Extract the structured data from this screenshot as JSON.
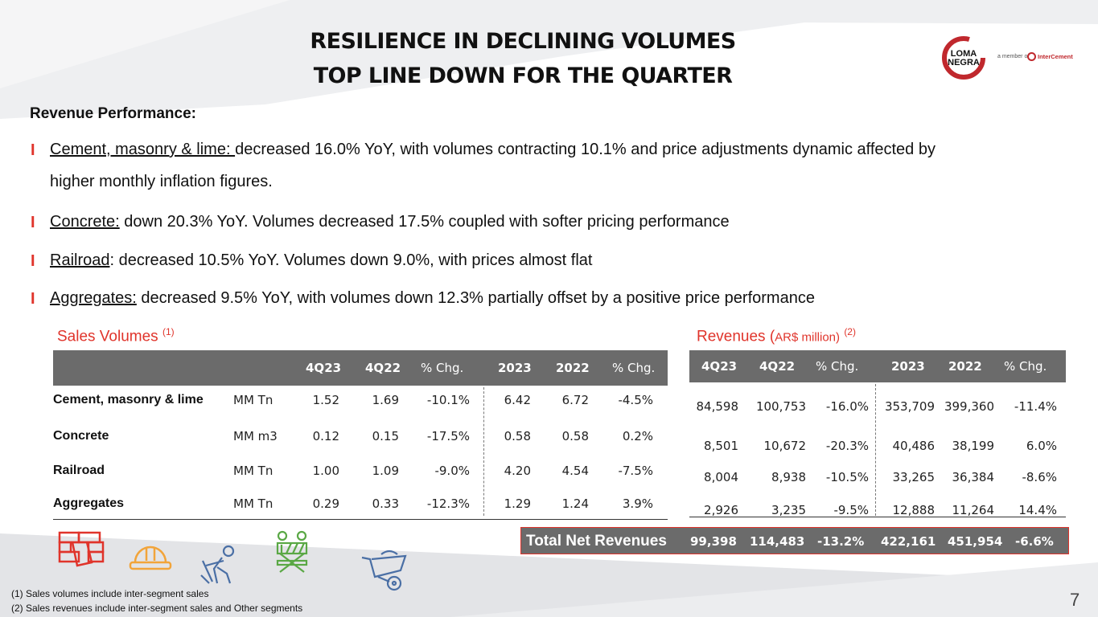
{
  "title": {
    "line1": "RESILIENCE IN DECLINING VOLUMES",
    "line2": "TOP LINE DOWN FOR THE QUARTER"
  },
  "brand": {
    "logo_line1": "LOMA",
    "logo_line2": "NEGRA",
    "member_text": "a member of",
    "partner_name": "InterCement",
    "accent_color": "#e0342b",
    "header_gray": "#6b6b6b"
  },
  "performance": {
    "heading": "Revenue Performance:",
    "bullet_glyph": "I",
    "bullets": [
      {
        "label": "Cement, masonry & lime: ",
        "text": " decreased 16.0% YoY, with volumes contracting 10.1% and price adjustments dynamic affected by",
        "text2": "higher monthly inflation figures."
      },
      {
        "label": "Concrete:",
        "text": " down 20.3% YoY.  Volumes decreased 17.5% coupled with softer pricing performance"
      },
      {
        "label": "Railroad",
        "text": ": decreased 10.5% YoY. Volumes down 9.0%, with prices almost flat"
      },
      {
        "label": "Aggregates:",
        "text": " decreased 9.5% YoY, with volumes down 12.3% partially offset by a positive price performance"
      }
    ]
  },
  "sales_volumes": {
    "title": "Sales Volumes",
    "note": "(1)",
    "headers": [
      "4Q23",
      "4Q22",
      "% Chg.",
      "2023",
      "2022",
      "% Chg."
    ],
    "rows": [
      {
        "name": "Cement, masonry & lime",
        "unit": "MM Tn",
        "v": [
          "1.52",
          "1.69",
          "-10.1%",
          "6.42",
          "6.72",
          "-4.5%"
        ]
      },
      {
        "name": "Concrete",
        "unit": "MM m3",
        "v": [
          "0.12",
          "0.15",
          "-17.5%",
          "0.58",
          "0.58",
          "0.2%"
        ]
      },
      {
        "name": "Railroad",
        "unit": "MM Tn",
        "v": [
          "1.00",
          "1.09",
          "-9.0%",
          "4.20",
          "4.54",
          "-7.5%"
        ]
      },
      {
        "name": "Aggregates",
        "unit": "MM Tn",
        "v": [
          "0.29",
          "0.33",
          "-12.3%",
          "1.29",
          "1.24",
          "3.9%"
        ]
      }
    ]
  },
  "revenues": {
    "title": "Revenues",
    "unit_prefix": "(",
    "unit": "AR$ million)",
    "note": "(2)",
    "headers": [
      "4Q23",
      "4Q22",
      "% Chg.",
      "2023",
      "2022",
      "% Chg."
    ],
    "rows": [
      [
        "84,598",
        "100,753",
        "-16.0%",
        "353,709",
        "399,360",
        "-11.4%"
      ],
      [
        "8,501",
        "10,672",
        "-20.3%",
        "40,486",
        "38,199",
        "6.0%"
      ],
      [
        "8,004",
        "8,938",
        "-10.5%",
        "33,265",
        "36,384",
        "-8.6%"
      ],
      [
        "2,926",
        "3,235",
        "-9.5%",
        "12,888",
        "11,264",
        "14.4%"
      ]
    ],
    "total_label": "Total Net Revenues",
    "total": [
      "99,398",
      "114,483",
      "-13.2%",
      "422,161",
      "451,954",
      "-6.6%"
    ]
  },
  "icons": [
    "bricks-icon",
    "hard-hat-icon",
    "worker-shovel-icon",
    "railroad-barrier-icon",
    "wheelbarrow-icon"
  ],
  "footnotes": [
    "(1)   Sales volumes include inter-segment sales",
    "(2)  Sales revenues include inter-segment sales and Other segments"
  ],
  "page_number": "7"
}
